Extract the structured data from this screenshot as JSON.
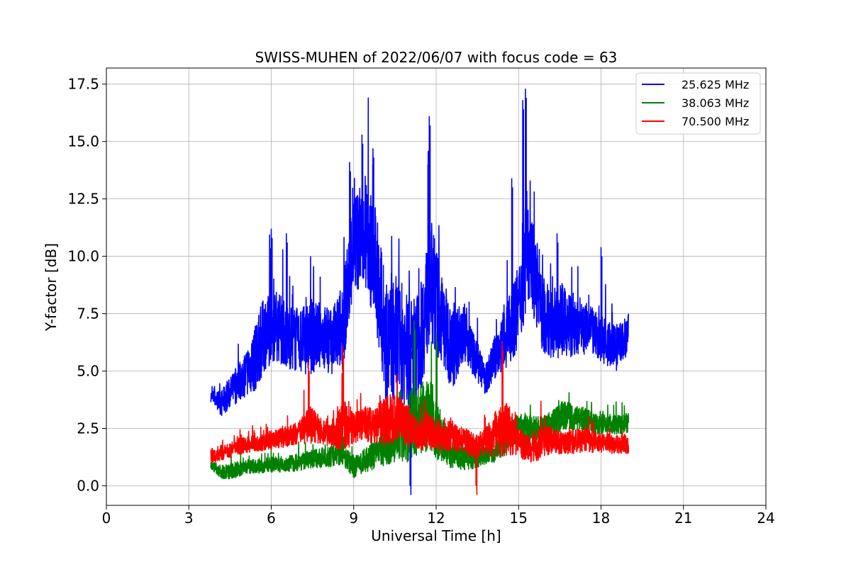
{
  "chart_data": {
    "type": "line",
    "title": "SWISS-MUHEN of 2022/06/07 with focus code = 63",
    "xlabel": "Universal Time [h]",
    "ylabel": "Y-factor [dB]",
    "xlim": [
      0,
      24
    ],
    "ylim": [
      -0.85,
      18.2
    ],
    "xticks": [
      0,
      3,
      6,
      9,
      12,
      15,
      18,
      21,
      24
    ],
    "xtick_labels": [
      "0",
      "3",
      "6",
      "9",
      "12",
      "15",
      "18",
      "21",
      "24"
    ],
    "yticks": [
      0,
      2.5,
      5,
      7.5,
      10,
      12.5,
      15,
      17.5
    ],
    "ytick_labels": [
      "0.0",
      "2.5",
      "5.0",
      "7.5",
      "10.0",
      "12.5",
      "15.0",
      "17.5"
    ],
    "grid": true,
    "legend_position": "top-right",
    "x": [
      3.8,
      4.2,
      4.6,
      5.0,
      5.4,
      5.8,
      6.2,
      6.6,
      7.0,
      7.4,
      7.8,
      8.2,
      8.6,
      9.0,
      9.4,
      9.8,
      10.2,
      10.6,
      11.0,
      11.4,
      11.8,
      12.2,
      12.6,
      13.0,
      13.4,
      13.8,
      14.2,
      14.6,
      15.0,
      15.4,
      15.8,
      16.2,
      16.6,
      17.0,
      17.4,
      17.8,
      18.2,
      18.6,
      19.0
    ],
    "series": [
      {
        "name": "25.625 MHz",
        "color": "#0000ff",
        "values": [
          3.9,
          3.6,
          4.2,
          4.8,
          5.5,
          6.8,
          7.0,
          6.5,
          6.3,
          6.4,
          6.6,
          6.2,
          7.0,
          10.5,
          11.2,
          9.5,
          6.0,
          6.5,
          5.8,
          6.2,
          9.0,
          7.2,
          6.0,
          6.8,
          5.6,
          4.6,
          5.8,
          6.6,
          7.8,
          10.5,
          7.6,
          7.0,
          7.2,
          6.8,
          6.9,
          6.6,
          6.2,
          6.0,
          6.6
        ],
        "spread": [
          0.4,
          0.9,
          1.1,
          1.5,
          2.2,
          2.6,
          2.4,
          2.2,
          2.2,
          2.4,
          2.2,
          2.2,
          3.0,
          3.4,
          3.8,
          4.0,
          4.2,
          4.2,
          3.8,
          3.6,
          4.2,
          3.2,
          2.8,
          2.0,
          1.4,
          1.0,
          1.6,
          2.2,
          2.8,
          3.6,
          2.6,
          2.4,
          2.4,
          2.0,
          1.8,
          1.6,
          1.6,
          1.6,
          1.4
        ]
      },
      {
        "name": "38.063 MHz",
        "color": "#008000",
        "values": [
          0.9,
          0.6,
          0.65,
          0.8,
          0.85,
          0.9,
          0.95,
          0.95,
          1.05,
          1.15,
          1.2,
          1.3,
          1.4,
          0.8,
          1.1,
          1.35,
          1.7,
          2.1,
          2.6,
          3.0,
          3.0,
          2.0,
          1.4,
          1.2,
          1.2,
          1.3,
          1.5,
          2.0,
          2.5,
          2.4,
          2.4,
          2.6,
          3.1,
          3.0,
          2.9,
          2.7,
          2.7,
          2.7,
          2.7
        ],
        "spread": [
          0.3,
          0.45,
          0.55,
          0.5,
          0.5,
          0.5,
          0.55,
          0.55,
          0.6,
          0.6,
          0.65,
          0.7,
          0.75,
          0.7,
          0.8,
          0.9,
          1.2,
          1.6,
          2.4,
          2.4,
          2.4,
          1.6,
          1.0,
          0.8,
          0.7,
          0.6,
          0.7,
          0.9,
          1.0,
          1.0,
          1.0,
          1.0,
          1.0,
          0.9,
          0.8,
          0.7,
          0.7,
          0.7,
          0.7
        ]
      },
      {
        "name": "70.500 MHz",
        "color": "#ff0000",
        "values": [
          1.3,
          1.45,
          1.6,
          1.75,
          1.85,
          1.95,
          2.05,
          2.15,
          2.3,
          2.7,
          2.4,
          2.35,
          2.6,
          2.5,
          2.7,
          2.6,
          2.8,
          3.0,
          2.6,
          2.2,
          2.4,
          2.1,
          2.2,
          2.0,
          1.7,
          1.9,
          2.3,
          2.5,
          1.9,
          1.6,
          1.9,
          2.0,
          1.9,
          1.9,
          2.0,
          1.9,
          1.85,
          1.8,
          1.8
        ],
        "spread": [
          0.5,
          0.5,
          0.5,
          0.55,
          0.6,
          0.6,
          0.65,
          0.7,
          0.75,
          1.3,
          0.9,
          1.0,
          1.8,
          1.0,
          1.2,
          1.2,
          1.8,
          1.6,
          1.4,
          1.0,
          1.2,
          1.0,
          1.0,
          0.9,
          0.8,
          1.0,
          1.6,
          1.8,
          1.0,
          0.9,
          1.2,
          0.9,
          0.8,
          0.8,
          0.8,
          0.7,
          0.7,
          0.6,
          0.6
        ]
      }
    ],
    "peaks": [
      {
        "series": 0,
        "x": 15.25,
        "y": 17.3
      },
      {
        "series": 0,
        "x": 15.15,
        "y": 16.8
      },
      {
        "series": 0,
        "x": 11.75,
        "y": 16.1
      },
      {
        "series": 0,
        "x": 9.3,
        "y": 15.3
      },
      {
        "series": 0,
        "x": 9.7,
        "y": 14.7
      },
      {
        "series": 0,
        "x": 8.85,
        "y": 14.1
      },
      {
        "series": 0,
        "x": 11.7,
        "y": 14.0
      },
      {
        "series": 0,
        "x": 14.75,
        "y": 13.4
      },
      {
        "series": 0,
        "x": 6.0,
        "y": 11.2
      },
      {
        "series": 0,
        "x": 6.55,
        "y": 11.0
      },
      {
        "series": 0,
        "x": 16.4,
        "y": 11.0
      },
      {
        "series": 0,
        "x": 18.0,
        "y": 10.4
      },
      {
        "series": 1,
        "x": 11.2,
        "y": 7.2
      },
      {
        "series": 1,
        "x": 12.0,
        "y": 6.7
      },
      {
        "series": 2,
        "x": 8.6,
        "y": 6.1
      },
      {
        "series": 2,
        "x": 14.4,
        "y": 6.3
      },
      {
        "series": 2,
        "x": 7.35,
        "y": 5.4
      },
      {
        "series": 0,
        "x": 11.05,
        "y": 0.0
      },
      {
        "series": 2,
        "x": 13.45,
        "y": 0.0
      }
    ]
  }
}
